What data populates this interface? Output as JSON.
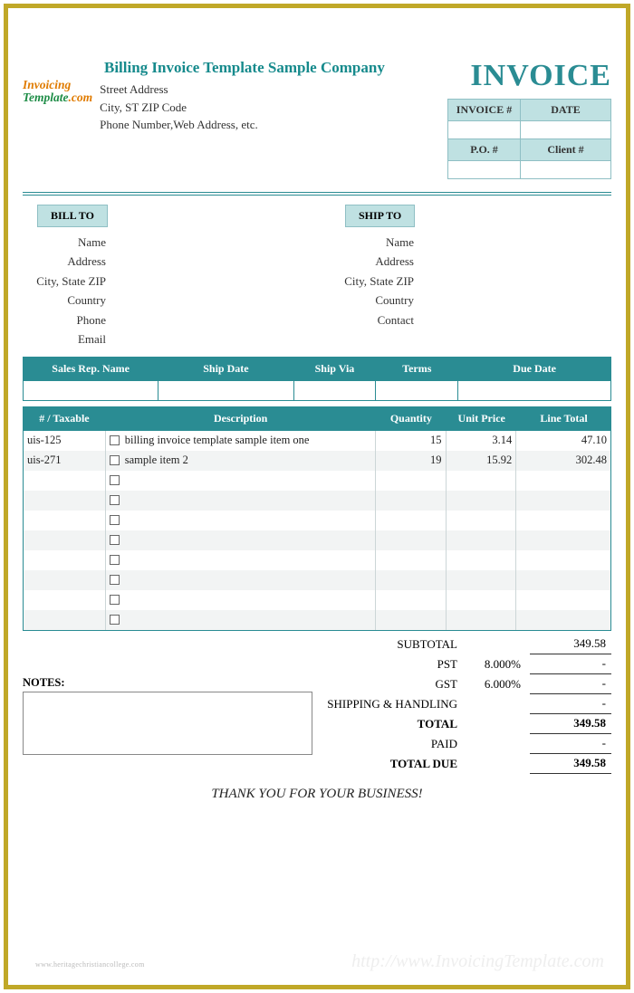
{
  "colors": {
    "frame": "#c0a828",
    "teal_dark": "#2a8c93",
    "teal_light": "#bfe1e2",
    "teal_border": "#8fbfc4",
    "stripe": "#f2f4f4"
  },
  "header": {
    "company_title": "Billing Invoice Template Sample Company",
    "logo_line1": "Invoicing",
    "logo_line2": "Template",
    "logo_suffix": ".com",
    "address_lines": [
      "Street Address",
      "City, ST  ZIP Code",
      "Phone Number,Web Address, etc."
    ],
    "invoice_word": "INVOICE",
    "meta": {
      "row1": {
        "h1": "INVOICE #",
        "h2": "DATE",
        "v1": "",
        "v2": ""
      },
      "row2": {
        "h1": "P.O. #",
        "h2": "Client #",
        "v1": "",
        "v2": ""
      }
    }
  },
  "parties": {
    "bill": {
      "heading": "BILL TO",
      "fields": [
        "Name",
        "Address",
        "City, State ZIP",
        "Country",
        "Phone",
        "Email"
      ]
    },
    "ship": {
      "heading": "SHIP TO",
      "fields": [
        "Name",
        "Address",
        "City, State ZIP",
        "Country",
        "Contact"
      ]
    }
  },
  "sales_bar": {
    "headers": [
      "Sales Rep. Name",
      "Ship Date",
      "Ship Via",
      "Terms",
      "Due Date"
    ],
    "values": [
      "",
      "",
      "",
      "",
      ""
    ]
  },
  "items": {
    "headers": [
      "# / Taxable",
      "Description",
      "Quantity",
      "Unit Price",
      "Line Total"
    ],
    "col_widths_pct": [
      14,
      46,
      12,
      12,
      16
    ],
    "rows": [
      {
        "num": "uis-125",
        "taxable": false,
        "desc": "billing invoice template sample item one",
        "qty": "15",
        "price": "3.14",
        "total": "47.10"
      },
      {
        "num": "uis-271",
        "taxable": false,
        "desc": "sample item 2",
        "qty": "19",
        "price": "15.92",
        "total": "302.48"
      },
      {
        "num": "",
        "taxable": false,
        "desc": "",
        "qty": "",
        "price": "",
        "total": ""
      },
      {
        "num": "",
        "taxable": false,
        "desc": "",
        "qty": "",
        "price": "",
        "total": ""
      },
      {
        "num": "",
        "taxable": false,
        "desc": "",
        "qty": "",
        "price": "",
        "total": ""
      },
      {
        "num": "",
        "taxable": false,
        "desc": "",
        "qty": "",
        "price": "",
        "total": ""
      },
      {
        "num": "",
        "taxable": false,
        "desc": "",
        "qty": "",
        "price": "",
        "total": ""
      },
      {
        "num": "",
        "taxable": false,
        "desc": "",
        "qty": "",
        "price": "",
        "total": ""
      },
      {
        "num": "",
        "taxable": false,
        "desc": "",
        "qty": "",
        "price": "",
        "total": ""
      },
      {
        "num": "",
        "taxable": false,
        "desc": "",
        "qty": "",
        "price": "",
        "total": ""
      }
    ]
  },
  "totals": {
    "rows": [
      {
        "label": "SUBTOTAL",
        "mid": "",
        "value": "349.58",
        "big": false
      },
      {
        "label": "PST",
        "mid": "8.000%",
        "value": "-",
        "big": false
      },
      {
        "label": "GST",
        "mid": "6.000%",
        "value": "-",
        "big": false
      },
      {
        "label": "SHIPPING & HANDLING",
        "mid": "",
        "value": "-",
        "big": false
      },
      {
        "label": "TOTAL",
        "mid": "",
        "value": "349.58",
        "big": true
      },
      {
        "label": "PAID",
        "mid": "",
        "value": "-",
        "big": false
      },
      {
        "label": "TOTAL DUE",
        "mid": "",
        "value": "349.58",
        "big": true
      }
    ]
  },
  "notes_label": "NOTES:",
  "thank_you": "THANK YOU FOR YOUR BUSINESS!",
  "tiny_credit": "www.heritagechristiancollege.com",
  "watermark": "http://www.InvoicingTemplate.com"
}
